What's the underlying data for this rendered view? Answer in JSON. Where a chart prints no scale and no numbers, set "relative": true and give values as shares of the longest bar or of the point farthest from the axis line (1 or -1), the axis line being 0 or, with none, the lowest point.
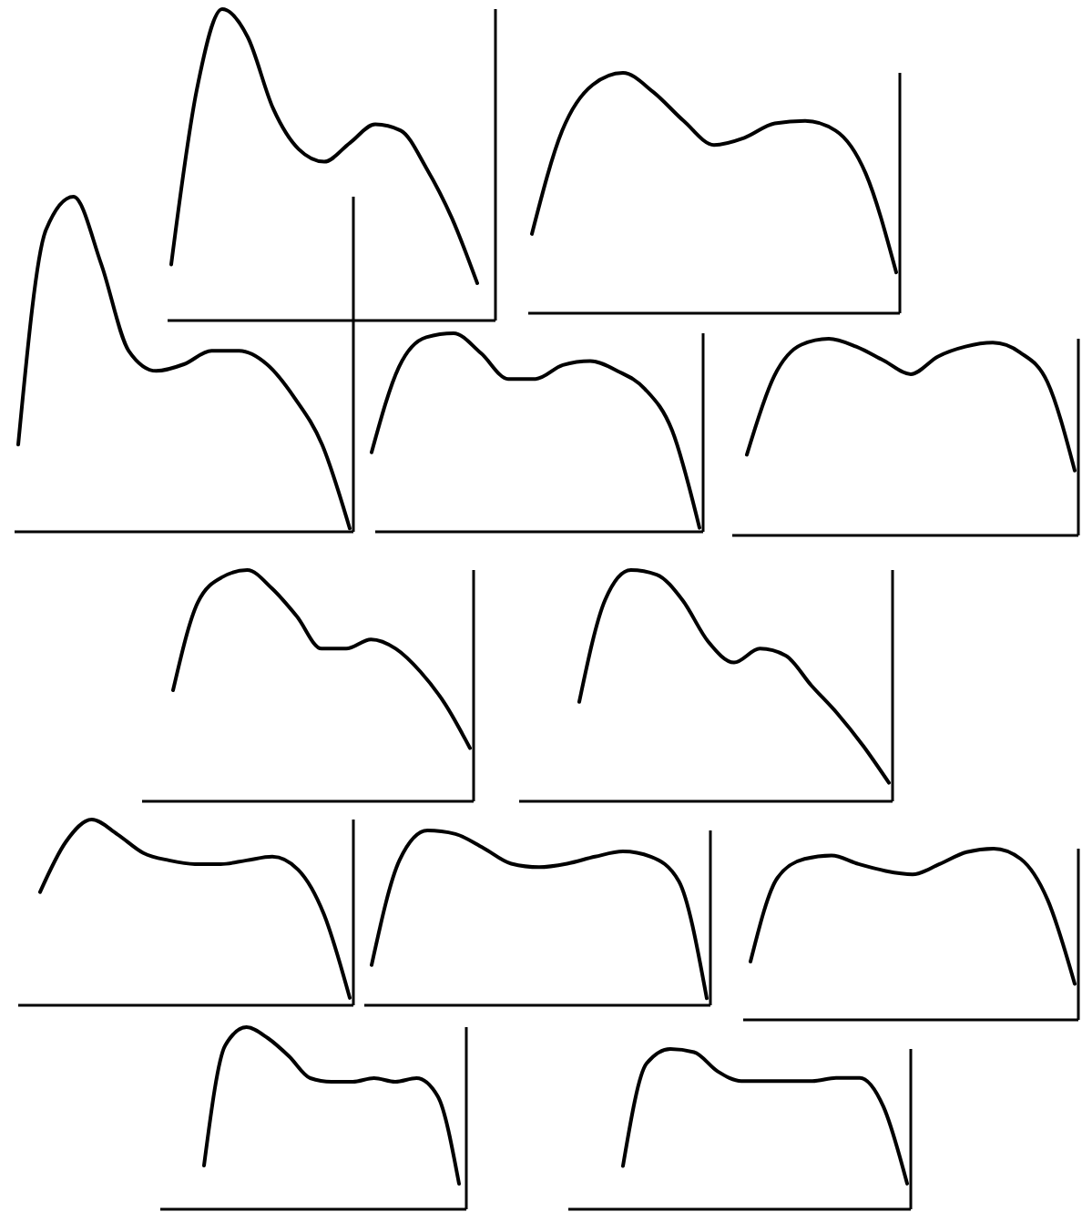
{
  "chart_data": [
    {
      "type": "line",
      "relative": true,
      "categories": [
        null,
        null,
        null,
        null,
        null,
        null,
        null,
        null,
        null,
        null,
        null,
        null,
        null
      ],
      "series": [
        {
          "color": "#000000",
          "values": [
            0.18,
            0.74,
            1,
            0.91,
            0.68,
            0.55,
            0.51,
            0.57,
            0.63,
            0.61,
            0.49,
            0.33,
            0.12
          ]
        }
      ]
    },
    {
      "type": "line",
      "relative": true,
      "categories": [
        null,
        null,
        null,
        null,
        null,
        null,
        null,
        null,
        null,
        null,
        null,
        null,
        null
      ],
      "series": [
        {
          "color": "#000000",
          "values": [
            0.33,
            0.76,
            0.95,
            1,
            0.92,
            0.8,
            0.7,
            0.73,
            0.79,
            0.8,
            0.76,
            0.58,
            0.17
          ]
        }
      ]
    },
    {
      "type": "line",
      "relative": true,
      "categories": [
        null,
        null,
        null,
        null,
        null,
        null,
        null,
        null,
        null,
        null,
        null,
        null,
        null
      ],
      "series": [
        {
          "color": "#000000",
          "values": [
            0.26,
            0.9,
            1,
            0.8,
            0.54,
            0.48,
            0.5,
            0.54,
            0.54,
            0.5,
            0.4,
            0.26,
            0.01
          ]
        }
      ]
    },
    {
      "type": "line",
      "relative": true,
      "categories": [
        null,
        null,
        null,
        null,
        null,
        null,
        null,
        null,
        null,
        null,
        null,
        null,
        null
      ],
      "series": [
        {
          "color": "#000000",
          "values": [
            0.4,
            0.83,
            0.98,
            1,
            0.9,
            0.77,
            0.77,
            0.84,
            0.86,
            0.81,
            0.72,
            0.51,
            0.02
          ]
        }
      ]
    },
    {
      "type": "line",
      "relative": true,
      "categories": [
        null,
        null,
        null,
        null,
        null,
        null,
        null,
        null,
        null,
        null,
        null,
        null,
        null
      ],
      "series": [
        {
          "color": "#000000",
          "values": [
            0.41,
            0.81,
            0.97,
            1,
            0.96,
            0.89,
            0.82,
            0.91,
            0.96,
            0.98,
            0.93,
            0.78,
            0.33
          ]
        }
      ]
    },
    {
      "type": "line",
      "relative": true,
      "categories": [
        null,
        null,
        null,
        null,
        null,
        null,
        null,
        null,
        null,
        null,
        null,
        null,
        null
      ],
      "series": [
        {
          "color": "#000000",
          "values": [
            0.48,
            0.86,
            0.97,
            1,
            0.92,
            0.8,
            0.66,
            0.66,
            0.7,
            0.66,
            0.56,
            0.42,
            0.23
          ]
        }
      ]
    },
    {
      "type": "line",
      "relative": true,
      "categories": [
        null,
        null,
        null,
        null,
        null,
        null,
        null,
        null,
        null,
        null,
        null,
        null,
        null
      ],
      "series": [
        {
          "color": "#000000",
          "values": [
            0.43,
            0.87,
            1,
            0.98,
            0.87,
            0.69,
            0.6,
            0.66,
            0.63,
            0.5,
            0.38,
            0.24,
            0.08
          ]
        }
      ]
    },
    {
      "type": "line",
      "relative": true,
      "categories": [
        null,
        null,
        null,
        null,
        null,
        null,
        null,
        null,
        null,
        null,
        null,
        null,
        null
      ],
      "series": [
        {
          "color": "#000000",
          "values": [
            0.61,
            0.88,
            1,
            0.92,
            0.82,
            0.78,
            0.76,
            0.76,
            0.78,
            0.8,
            0.73,
            0.49,
            0.04
          ]
        }
      ]
    },
    {
      "type": "line",
      "relative": true,
      "categories": [
        null,
        null,
        null,
        null,
        null,
        null,
        null,
        null,
        null,
        null,
        null,
        null,
        null
      ],
      "series": [
        {
          "color": "#000000",
          "values": [
            0.23,
            0.83,
            1,
            0.98,
            0.9,
            0.81,
            0.79,
            0.81,
            0.85,
            0.88,
            0.85,
            0.71,
            0.04
          ]
        }
      ]
    },
    {
      "type": "line",
      "relative": true,
      "categories": [
        null,
        null,
        null,
        null,
        null,
        null,
        null,
        null,
        null,
        null,
        null,
        null,
        null
      ],
      "series": [
        {
          "color": "#000000",
          "values": [
            0.34,
            0.83,
            0.94,
            0.96,
            0.91,
            0.87,
            0.85,
            0.91,
            0.98,
            1,
            0.94,
            0.7,
            0.21
          ]
        }
      ]
    },
    {
      "type": "line",
      "relative": true,
      "categories": [
        null,
        null,
        null,
        null,
        null,
        null,
        null,
        null,
        null,
        null,
        null,
        null,
        null
      ],
      "series": [
        {
          "color": "#000000",
          "values": [
            0.24,
            0.9,
            1,
            0.94,
            0.84,
            0.72,
            0.7,
            0.7,
            0.72,
            0.7,
            0.72,
            0.62,
            0.14
          ]
        }
      ]
    },
    {
      "type": "line",
      "relative": true,
      "categories": [
        null,
        null,
        null,
        null,
        null,
        null,
        null,
        null,
        null,
        null,
        null,
        null,
        null
      ],
      "series": [
        {
          "color": "#000000",
          "values": [
            0.27,
            0.91,
            1,
            0.98,
            0.86,
            0.8,
            0.8,
            0.8,
            0.8,
            0.82,
            0.82,
            0.64,
            0.16
          ]
        }
      ]
    }
  ]
}
